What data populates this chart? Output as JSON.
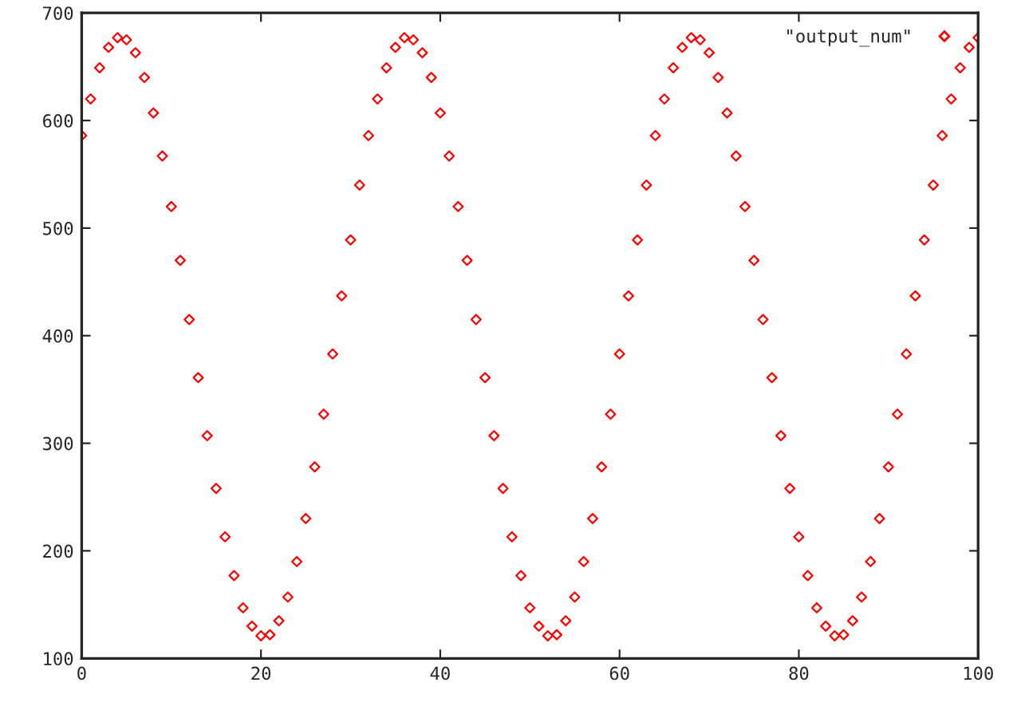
{
  "chart_data": {
    "type": "scatter",
    "x": [
      0,
      1,
      2,
      3,
      4,
      5,
      6,
      7,
      8,
      9,
      10,
      11,
      12,
      13,
      14,
      15,
      16,
      17,
      18,
      19,
      20,
      21,
      22,
      23,
      24,
      25,
      26,
      27,
      28,
      29,
      30,
      31,
      32,
      33,
      34,
      35,
      36,
      37,
      38,
      39,
      40,
      41,
      42,
      43,
      44,
      45,
      46,
      47,
      48,
      49,
      50,
      51,
      52,
      53,
      54,
      55,
      56,
      57,
      58,
      59,
      60,
      61,
      62,
      63,
      64,
      65,
      66,
      67,
      68,
      69,
      70,
      71,
      72,
      73,
      74,
      75,
      76,
      77,
      78,
      79,
      80,
      81,
      82,
      83,
      84,
      85,
      86,
      87,
      88,
      89,
      90,
      91,
      92,
      93,
      94,
      95,
      96,
      97,
      98,
      99,
      100
    ],
    "series": [
      {
        "name": "\"output_num\"",
        "color": "#ff0000",
        "values": [
          586,
          620,
          649,
          668,
          677,
          675,
          663,
          640,
          607,
          567,
          520,
          470,
          415,
          361,
          307,
          258,
          213,
          177,
          147,
          130,
          121,
          122,
          135,
          157,
          190,
          230,
          278,
          327,
          383,
          437,
          489,
          540,
          586,
          620,
          649,
          668,
          677,
          675,
          663,
          640,
          607,
          567,
          520,
          470,
          415,
          361,
          307,
          258,
          213,
          177,
          147,
          130,
          121,
          122,
          135,
          157,
          190,
          230,
          278,
          327,
          383,
          437,
          489,
          540,
          586,
          620,
          649,
          668,
          677,
          675,
          663,
          640,
          607,
          567,
          520,
          470,
          415,
          361,
          307,
          258,
          213,
          177,
          147,
          130,
          121,
          122,
          135,
          157,
          190,
          230,
          278,
          327,
          383,
          437,
          489,
          540,
          586,
          620,
          649,
          668,
          677
        ]
      }
    ],
    "xlim": [
      0,
      100
    ],
    "xticks": [
      0,
      20,
      40,
      60,
      80,
      100
    ],
    "ylim": [
      100,
      700
    ],
    "yticks": [
      100,
      200,
      300,
      400,
      500,
      600,
      700
    ],
    "marker": "diamond",
    "legend": "top right",
    "grid": false
  }
}
